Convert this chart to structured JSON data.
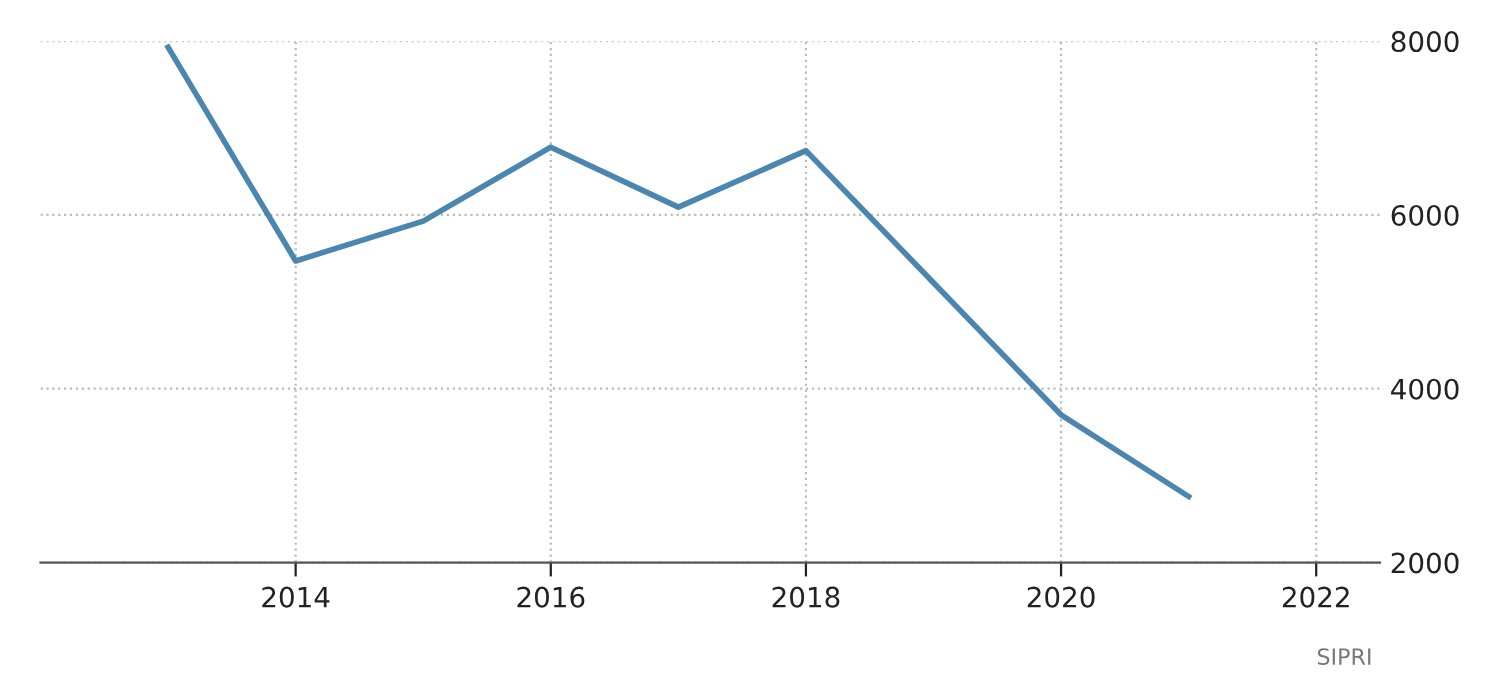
{
  "chart_data": {
    "type": "line",
    "x": [
      2013,
      2014,
      2015,
      2016,
      2017,
      2018,
      2019,
      2020,
      2021
    ],
    "series": [
      {
        "color": "#4a86b0",
        "values": [
          7930,
          5470,
          5930,
          6780,
          6090,
          6740,
          5220,
          3700,
          2760
        ]
      }
    ],
    "xlim": [
      2012,
      2022.5
    ],
    "xticks": [
      2014,
      2016,
      2018,
      2020,
      2022
    ],
    "ylim": [
      2000,
      8000
    ],
    "yticks": [
      2000,
      4000,
      6000,
      8000
    ],
    "grid": true,
    "legend": false,
    "marker": "none",
    "line_style": "solid",
    "annotations": [
      "SIPRI"
    ]
  }
}
